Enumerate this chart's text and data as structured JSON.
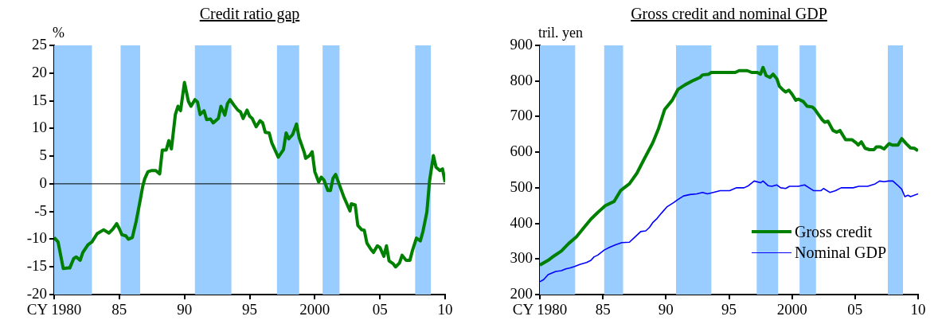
{
  "chart_data": [
    {
      "type": "line",
      "title": "Credit ratio gap",
      "ylabel": "%",
      "xlim": [
        1980,
        2010
      ],
      "xticks": [
        {
          "value": 1980,
          "label": "CY 1980"
        },
        {
          "value": 1985,
          "label": "85"
        },
        {
          "value": 1990,
          "label": "90"
        },
        {
          "value": 1995,
          "label": "95"
        },
        {
          "value": 2000,
          "label": "2000"
        },
        {
          "value": 2005,
          "label": "05"
        },
        {
          "value": 2010,
          "label": "10"
        }
      ],
      "ylim": [
        -20,
        25
      ],
      "yticks": [
        -20,
        -15,
        -10,
        -5,
        0,
        5,
        10,
        15,
        20,
        25
      ],
      "bands": [
        {
          "axis": "x",
          "from": 1980,
          "to": 1982.9,
          "color": "#99ccff"
        },
        {
          "axis": "x",
          "from": 1985.1,
          "to": 1986.6,
          "color": "#99ccff"
        },
        {
          "axis": "x",
          "from": 1990.8,
          "to": 1993.6,
          "color": "#99ccff"
        },
        {
          "axis": "x",
          "from": 1997.1,
          "to": 1998.8,
          "color": "#99ccff"
        },
        {
          "axis": "x",
          "from": 2000.6,
          "to": 2001.9,
          "color": "#99ccff"
        },
        {
          "axis": "x",
          "from": 2007.7,
          "to": 2008.9,
          "color": "#99ccff"
        }
      ],
      "ref_lines": [
        {
          "axis": "y",
          "value": 0,
          "color": "#000000"
        }
      ],
      "series": [
        {
          "color": "#008000",
          "x": [
            1980.0,
            1980.3,
            1980.7,
            1981.1,
            1981.2,
            1981.5,
            1981.7,
            1982.0,
            1982.2,
            1982.6,
            1982.9,
            1983.3,
            1983.8,
            1984.2,
            1984.5,
            1984.8,
            1985.0,
            1985.2,
            1985.5,
            1985.7,
            1986.0,
            1986.3,
            1986.6,
            1986.8,
            1986.95,
            1987.2,
            1987.5,
            1987.8,
            1988.1,
            1988.3,
            1988.6,
            1988.8,
            1989.0,
            1989.3,
            1989.5,
            1989.7,
            1990.0,
            1990.3,
            1990.5,
            1990.8,
            1991.0,
            1991.2,
            1991.5,
            1991.7,
            1992.0,
            1992.2,
            1992.6,
            1992.8,
            1993.1,
            1993.3,
            1993.5,
            1993.8,
            1994.1,
            1994.3,
            1994.5,
            1994.8,
            1995.0,
            1995.2,
            1995.5,
            1995.8,
            1996.0,
            1996.2,
            1996.5,
            1996.7,
            1997.2,
            1997.6,
            1997.8,
            1998.0,
            1998.3,
            1998.6,
            1998.8,
            1999.2,
            1999.3,
            1999.6,
            1999.8,
            2000.0,
            2000.3,
            2000.5,
            2000.7,
            2001.0,
            2001.2,
            2001.4,
            2001.6,
            2002.0,
            2002.2,
            2002.7,
            2002.8,
            2003.1,
            2003.3,
            2003.6,
            2003.8,
            2004.0,
            2004.3,
            2004.5,
            2004.8,
            2005.0,
            2005.3,
            2005.5,
            2005.7,
            2006.0,
            2006.2,
            2006.5,
            2006.7,
            2007.0,
            2007.3,
            2007.5,
            2007.8,
            2008.1,
            2008.3,
            2008.6,
            2008.8,
            2009.1,
            2009.3,
            2009.6,
            2009.8,
            2010.0
          ],
          "values": [
            -9.7,
            -10.5,
            -15.3,
            -15.2,
            -15.2,
            -13.5,
            -13.2,
            -13.8,
            -12.4,
            -11.0,
            -10.5,
            -9.0,
            -8.3,
            -8.9,
            -8.2,
            -7.2,
            -8.1,
            -9.2,
            -9.4,
            -10.0,
            -9.7,
            -6.7,
            -3.0,
            -0.4,
            0.9,
            2.2,
            2.4,
            2.4,
            1.8,
            6.1,
            6.1,
            7.8,
            6.3,
            12.5,
            14.0,
            13.2,
            18.3,
            14.9,
            14.0,
            15.2,
            14.8,
            12.5,
            13.2,
            11.6,
            11.7,
            11.0,
            11.8,
            14.0,
            12.4,
            14.5,
            15.2,
            14.2,
            13.3,
            13.0,
            11.8,
            13.3,
            12.2,
            11.8,
            10.3,
            11.4,
            11.0,
            9.3,
            9.2,
            7.4,
            4.8,
            6.2,
            9.2,
            8.1,
            8.9,
            10.8,
            8.3,
            5.6,
            4.6,
            5.1,
            5.8,
            2.2,
            0.3,
            1.2,
            0.7,
            -1.2,
            -1.2,
            1.0,
            1.7,
            -0.9,
            -2.2,
            -4.9,
            -3.6,
            -3.8,
            -7.5,
            -8.3,
            -8.4,
            -10.7,
            -11.8,
            -12.4,
            -11.2,
            -11.5,
            -13.1,
            -11.2,
            -13.9,
            -14.4,
            -15.0,
            -14.3,
            -12.9,
            -13.8,
            -13.8,
            -12.0,
            -9.8,
            -10.3,
            -8.6,
            -5.1,
            0.4,
            5.1,
            3.0,
            2.4,
            2.7,
            0.3
          ]
        }
      ]
    },
    {
      "type": "line",
      "title": "Gross credit and nominal GDP",
      "ylabel": "tril. yen",
      "legend": "bottom right",
      "xlim": [
        1980,
        2010
      ],
      "xticks": [
        {
          "value": 1980,
          "label": "CY 1980"
        },
        {
          "value": 1985,
          "label": "85"
        },
        {
          "value": 1990,
          "label": "90"
        },
        {
          "value": 1995,
          "label": "95"
        },
        {
          "value": 2000,
          "label": "2000"
        },
        {
          "value": 2005,
          "label": "05"
        },
        {
          "value": 2010,
          "label": "10"
        }
      ],
      "ylim": [
        200,
        900
      ],
      "yticks": [
        200,
        300,
        400,
        500,
        600,
        700,
        800,
        900
      ],
      "bands": [
        {
          "axis": "x",
          "from": 1980,
          "to": 1982.8,
          "color": "#99ccff"
        },
        {
          "axis": "x",
          "from": 1985.1,
          "to": 1986.6,
          "color": "#99ccff"
        },
        {
          "axis": "x",
          "from": 1990.8,
          "to": 1993.6,
          "color": "#99ccff"
        },
        {
          "axis": "x",
          "from": 1997.2,
          "to": 1998.9,
          "color": "#99ccff"
        },
        {
          "axis": "x",
          "from": 2000.6,
          "to": 2001.9,
          "color": "#99ccff"
        },
        {
          "axis": "x",
          "from": 2007.6,
          "to": 2008.8,
          "color": "#99ccff"
        }
      ],
      "series": [
        {
          "name": "Gross credit",
          "color": "#008000",
          "x": [
            1980.0,
            1980.65,
            1981.1,
            1981.7,
            1982.3,
            1982.9,
            1983.45,
            1984.05,
            1984.6,
            1985.2,
            1985.9,
            1986.4,
            1987.1,
            1987.7,
            1988.25,
            1988.95,
            1989.4,
            1989.9,
            1990.5,
            1990.95,
            1991.5,
            1992.2,
            1992.7,
            1992.9,
            1993.4,
            1993.6,
            1994.55,
            1995.5,
            1995.8,
            1996.45,
            1996.8,
            1997.25,
            1997.5,
            1997.7,
            1997.95,
            1998.25,
            1998.5,
            1998.8,
            1999.0,
            1999.25,
            1999.5,
            1999.75,
            2000.0,
            2000.3,
            2000.5,
            2000.9,
            2001.2,
            2001.6,
            2001.8,
            2002.05,
            2002.4,
            2002.6,
            2002.85,
            2003.25,
            2003.55,
            2003.8,
            2004.25,
            2004.75,
            2005.1,
            2005.25,
            2005.5,
            2005.8,
            2006.15,
            2006.5,
            2006.7,
            2007.0,
            2007.3,
            2007.7,
            2007.95,
            2008.4,
            2008.7,
            2009.05,
            2009.4,
            2009.7,
            2010.0
          ],
          "values": [
            283,
            296,
            308,
            322,
            344,
            362,
            386,
            412,
            431,
            450,
            462,
            492,
            511,
            541,
            579,
            626,
            665,
            720,
            746,
            776,
            789,
            802,
            810,
            817,
            819,
            824,
            824,
            824,
            829,
            829,
            824,
            824,
            819,
            838,
            815,
            810,
            819,
            806,
            785,
            776,
            769,
            774,
            763,
            746,
            749,
            742,
            729,
            727,
            721,
            708,
            691,
            684,
            687,
            661,
            656,
            661,
            635,
            635,
            626,
            620,
            629,
            611,
            607,
            607,
            615,
            615,
            609,
            624,
            620,
            620,
            638,
            624,
            612,
            611,
            604
          ]
        },
        {
          "name": "Nominal GDP",
          "color": "#0000ff",
          "x": [
            1980.0,
            1980.3,
            1980.65,
            1981.25,
            1981.7,
            1982.05,
            1982.4,
            1982.75,
            1983.2,
            1983.7,
            1984.05,
            1984.3,
            1984.6,
            1985.1,
            1985.55,
            1986.0,
            1986.5,
            1987.1,
            1987.55,
            1988.0,
            1988.4,
            1988.7,
            1988.95,
            1989.3,
            1989.65,
            1990.1,
            1990.6,
            1990.95,
            1991.4,
            1991.9,
            1992.45,
            1992.9,
            1993.3,
            1993.75,
            1994.3,
            1995.05,
            1995.6,
            1996.2,
            1996.55,
            1997.0,
            1997.5,
            1997.7,
            1998.1,
            1998.4,
            1998.8,
            1999.1,
            1999.5,
            1999.8,
            2000.5,
            2001.0,
            2001.35,
            2001.7,
            2002.3,
            2002.5,
            2003.0,
            2003.45,
            2003.9,
            2004.85,
            2005.3,
            2006.0,
            2006.6,
            2006.95,
            2007.3,
            2007.65,
            2008.0,
            2008.35,
            2008.7,
            2008.95,
            2009.2,
            2009.4,
            2010.0
          ],
          "values": [
            236,
            242,
            256,
            265,
            267,
            272,
            275,
            279,
            285,
            290,
            296,
            306,
            311,
            325,
            333,
            340,
            346,
            347,
            362,
            377,
            379,
            389,
            402,
            414,
            429,
            447,
            458,
            467,
            477,
            481,
            483,
            487,
            483,
            487,
            492,
            492,
            500,
            500,
            506,
            519,
            514,
            519,
            506,
            504,
            508,
            500,
            498,
            504,
            504,
            508,
            500,
            492,
            492,
            498,
            487,
            492,
            500,
            500,
            504,
            504,
            511,
            519,
            517,
            519,
            519,
            508,
            496,
            475,
            479,
            475,
            483
          ]
        }
      ]
    }
  ]
}
